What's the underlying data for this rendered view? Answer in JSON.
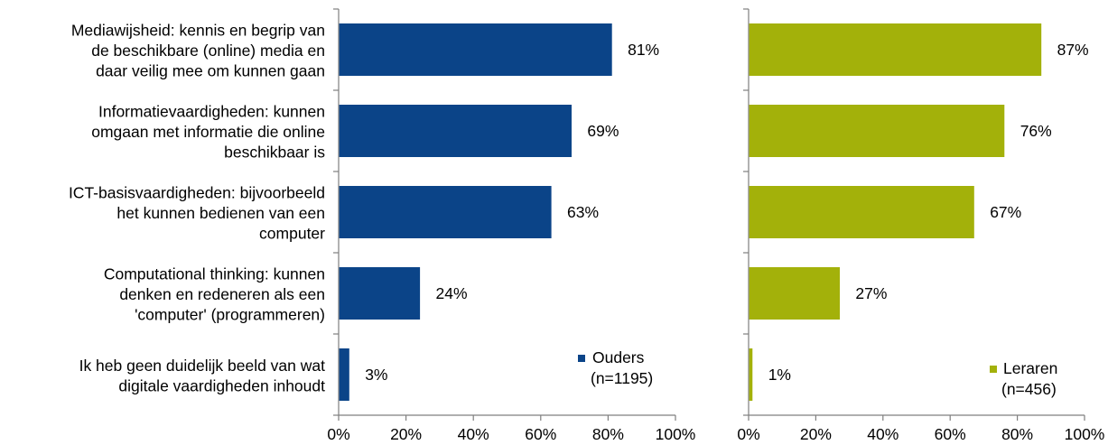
{
  "chart_data": [
    {
      "type": "bar",
      "orientation": "horizontal",
      "categories": [
        [
          "Mediawijsheid: kennis en begrip van",
          "de beschikbare (online) media en",
          "daar veilig mee om kunnen gaan"
        ],
        [
          "Informatievaardigheden: kunnen",
          "omgaan met informatie die online",
          "beschikbaar is"
        ],
        [
          "ICT-basisvaardigheden: bijvoorbeeld",
          "het kunnen bedienen van een",
          "computer"
        ],
        [
          "Computational thinking: kunnen",
          "denken en redeneren als een",
          "'computer' (programmeren)"
        ],
        [
          "Ik heb geen duidelijk beeld van wat",
          "digitale vaardigheden inhoudt"
        ]
      ],
      "series": [
        {
          "name": [
            "Ouders",
            "(n=1195)"
          ],
          "values": [
            81,
            69,
            63,
            24,
            3
          ],
          "color": "#0b4488"
        }
      ],
      "data_labels": [
        "81%",
        "69%",
        "63%",
        "24%",
        "3%"
      ],
      "xlim": [
        0,
        100
      ],
      "x_ticks": [
        "0%",
        "20%",
        "40%",
        "60%",
        "80%",
        "100%"
      ],
      "legend_position": "bottom-right",
      "grid": false
    },
    {
      "type": "bar",
      "orientation": "horizontal",
      "series": [
        {
          "name": [
            "Leraren",
            "(n=456)"
          ],
          "values": [
            87,
            76,
            67,
            27,
            1
          ],
          "color": "#a3b10a"
        }
      ],
      "data_labels": [
        "87%",
        "76%",
        "67%",
        "27%",
        "1%"
      ],
      "xlim": [
        0,
        100
      ],
      "x_ticks": [
        "0%",
        "20%",
        "40%",
        "60%",
        "80%",
        "100%"
      ],
      "legend_position": "bottom-right",
      "grid": false
    }
  ]
}
